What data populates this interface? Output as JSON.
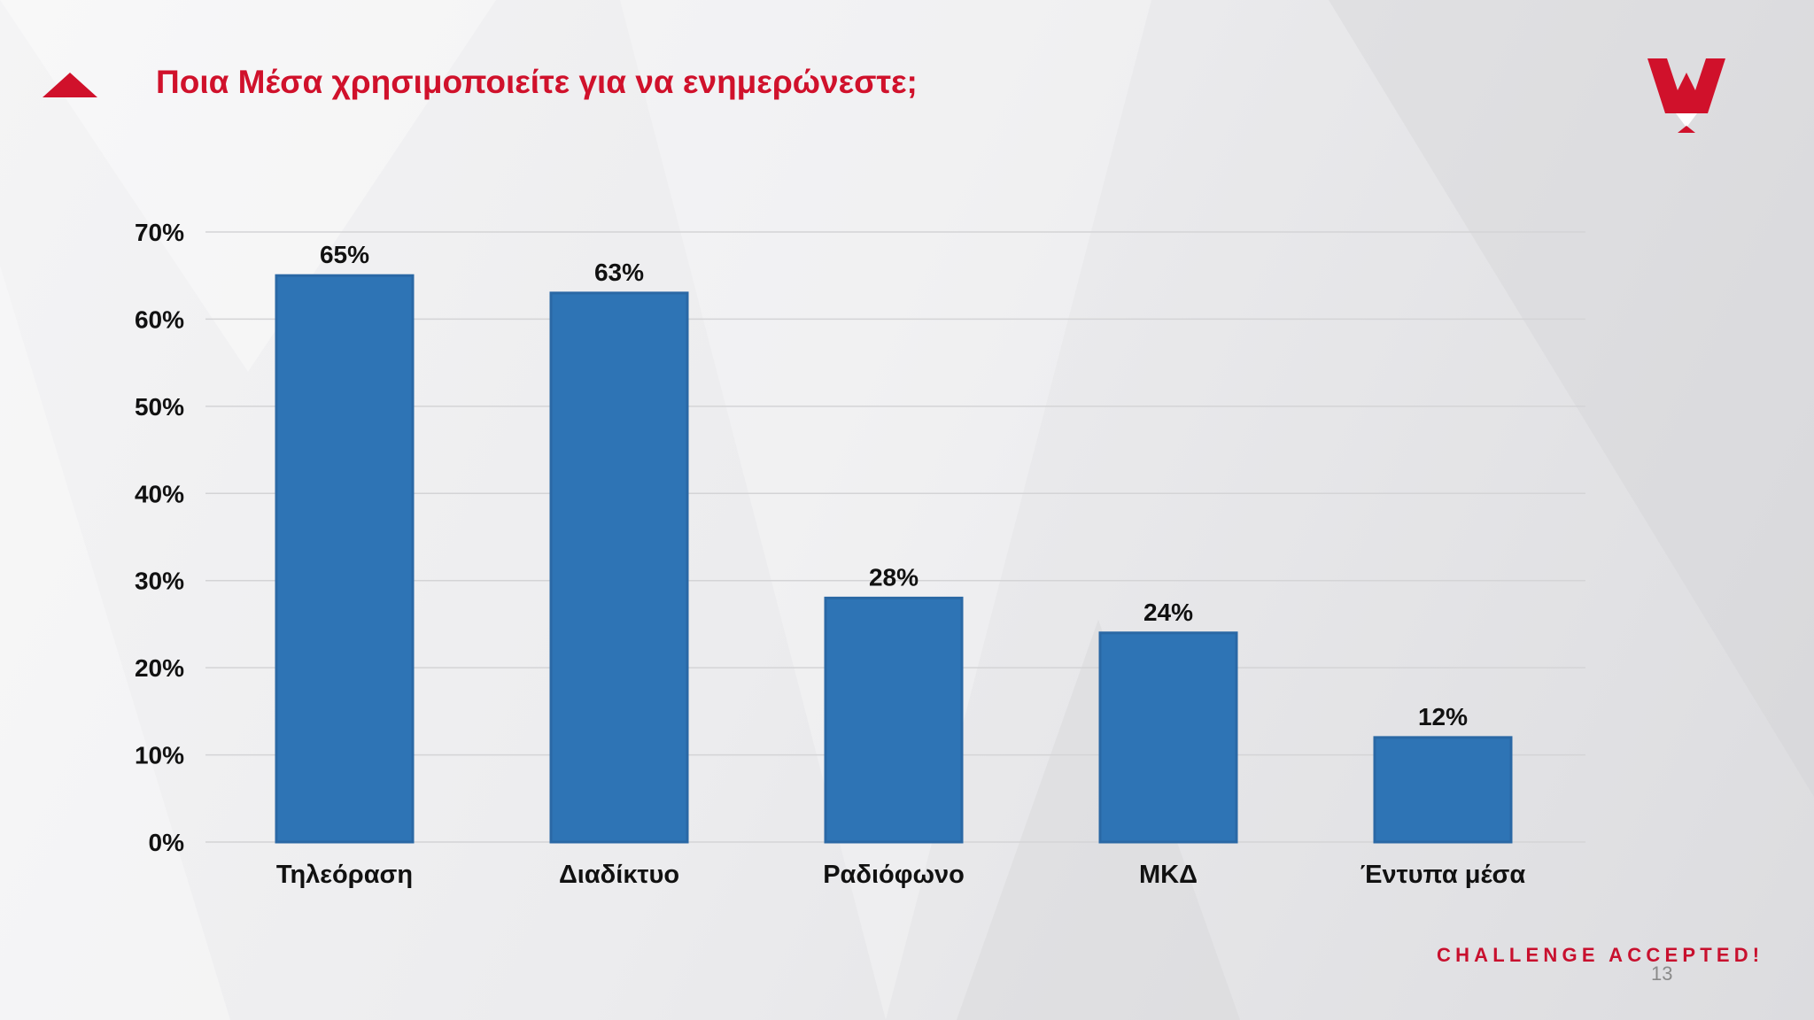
{
  "slide": {
    "title": "Ποια Μέσα χρησιμοποιείτε για να ενημερώνεστε;",
    "footer": "CHALLENGE ACCEPTED!",
    "page_number": "13",
    "accent_color": "#d0112b"
  },
  "chart_data": {
    "type": "bar",
    "title": "",
    "xlabel": "",
    "ylabel": "",
    "categories": [
      "Τηλεόραση",
      "Διαδίκτυο",
      "Ραδιόφωνο",
      "ΜΚΔ",
      "Έντυπα μέσα"
    ],
    "values": [
      65,
      63,
      28,
      24,
      12
    ],
    "value_labels": [
      "65%",
      "63%",
      "28%",
      "24%",
      "12%"
    ],
    "ylim": [
      0,
      70
    ],
    "yticks": [
      "0%",
      "10%",
      "20%",
      "30%",
      "40%",
      "50%",
      "60%",
      "70%"
    ],
    "grid": true,
    "bar_color": "#2e74b5",
    "legend": "none"
  }
}
